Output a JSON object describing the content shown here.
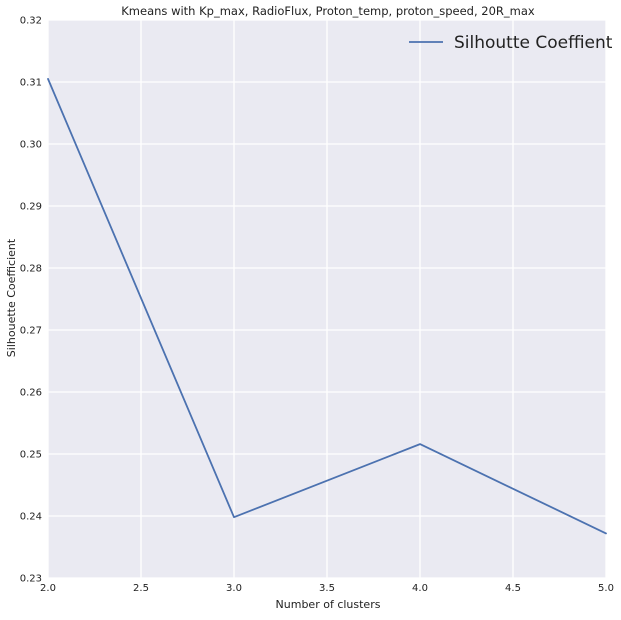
{
  "chart_data": {
    "type": "line",
    "title": "Kmeans with Kp_max, RadioFlux, Proton_temp, proton_speed, 20R_max",
    "xlabel": "Number of clusters",
    "ylabel": "Silhouette Coefficient",
    "xlim": [
      2.0,
      5.0
    ],
    "ylim": [
      0.23,
      0.32
    ],
    "xticks": [
      "2.0",
      "2.5",
      "3.0",
      "3.5",
      "4.0",
      "4.5",
      "5.0"
    ],
    "yticks": [
      "0.23",
      "0.24",
      "0.25",
      "0.26",
      "0.27",
      "0.28",
      "0.29",
      "0.30",
      "0.31",
      "0.32"
    ],
    "grid": true,
    "legend_position": "top-right",
    "background_color": "#eaeaf2",
    "grid_color": "#ffffff",
    "series": [
      {
        "name": "Silhoutte Coeffient",
        "color": "#4c72b0",
        "x": [
          2,
          3,
          4,
          5
        ],
        "y": [
          0.3105,
          0.2398,
          0.2516,
          0.2372
        ]
      }
    ]
  }
}
